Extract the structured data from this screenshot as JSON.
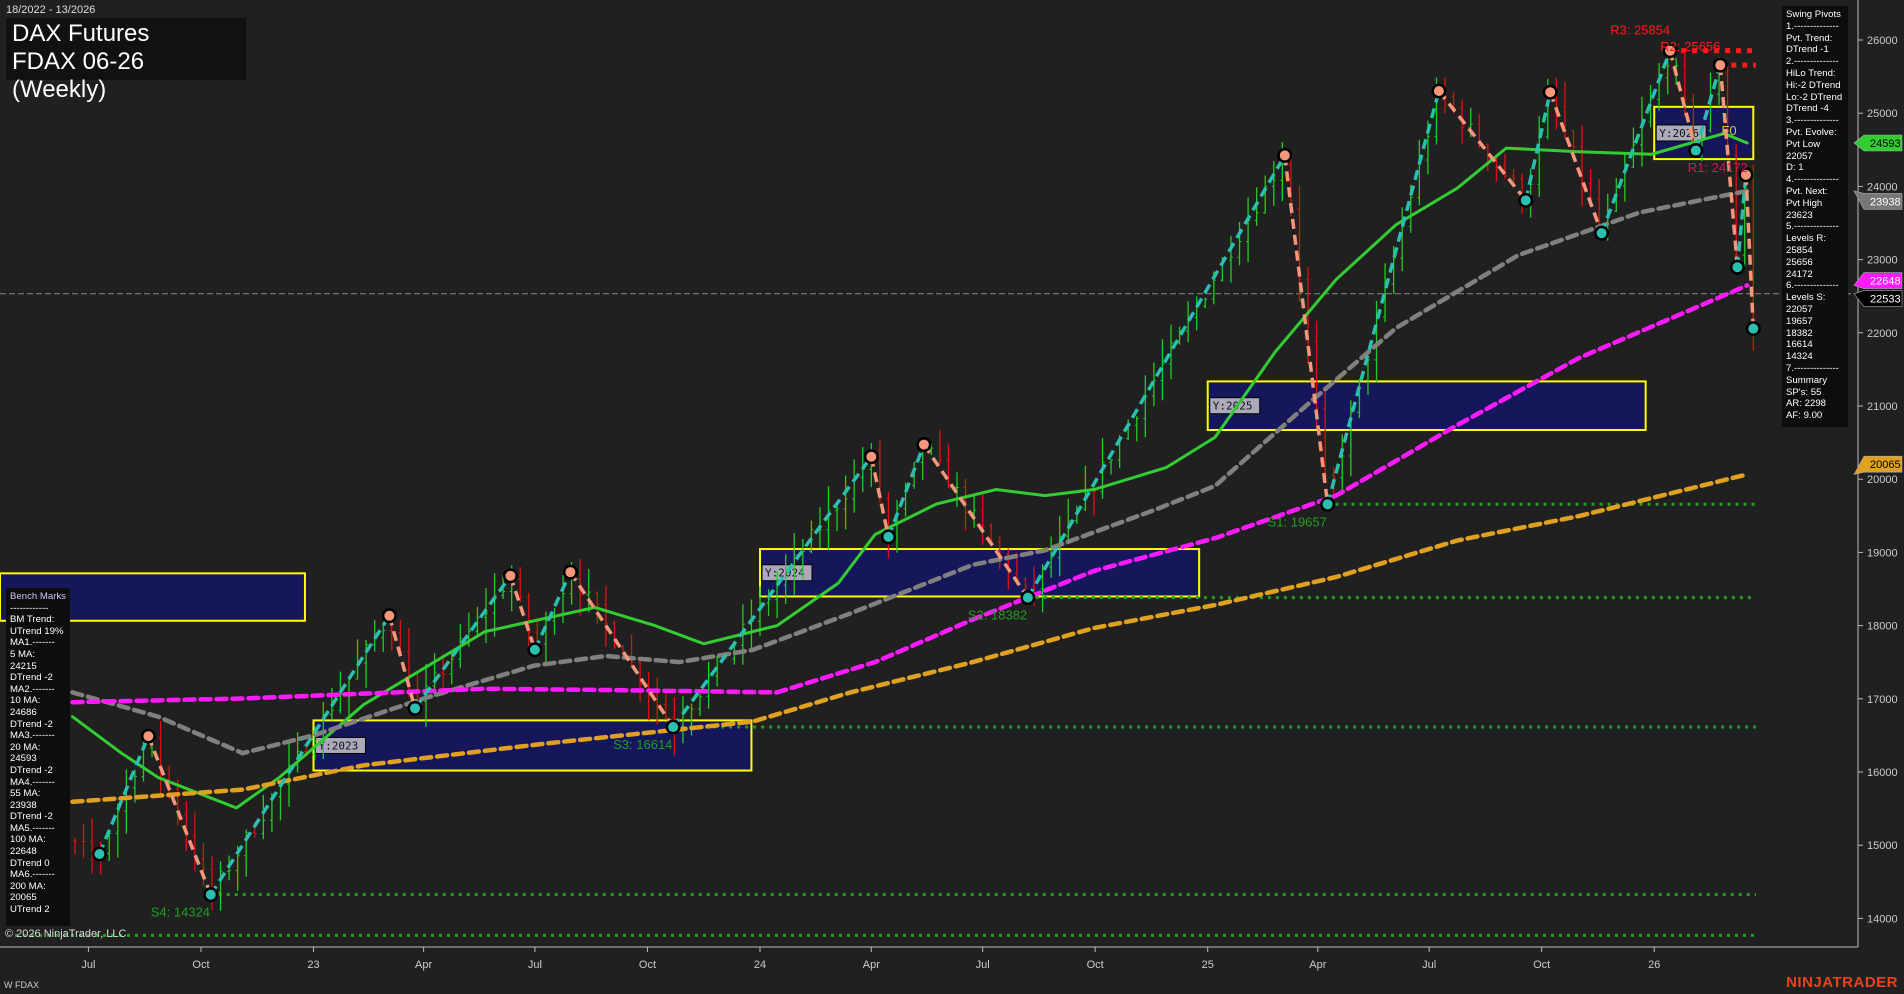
{
  "header": {
    "date_range": "18/2022 - 13/2026",
    "title_line1": "DAX Futures",
    "title_line2": "FDAX 06-26 (Weekly)"
  },
  "swing_pivots_panel": {
    "lines": [
      "Swing Pivots",
      "1.--------------",
      "Pvt. Trend:",
      "DTrend -1",
      "2.--------------",
      "HiLo Trend:",
      "Hi:-2 DTrend",
      "Lo:-2 DTrend",
      "DTrend -4",
      "3.--------------",
      "Pvt. Evolve:",
      "Pvt Low",
      "22057",
      "D: 1",
      "4.--------------",
      "Pvt. Next:",
      "Pvt High",
      "23623",
      "5.--------------",
      "Levels R:",
      "25854",
      "25656",
      "24172",
      "6.--------------",
      "Levels S:",
      "22057",
      "19657",
      "18382",
      "16614",
      "14324",
      "7.--------------",
      "Summary",
      "SP's: 55",
      "AR: 2298",
      "AF: 9.00"
    ]
  },
  "bench_marks_panel": {
    "lines": [
      "Bench Marks",
      "------------",
      "BM Trend:",
      "UTrend 19%",
      "MA1.-------",
      "5 MA:",
      "24215",
      "DTrend -2",
      "MA2.-------",
      "10 MA:",
      "24686",
      "DTrend -2",
      "MA3.-------",
      "20 MA:",
      "24593",
      "DTrend -2",
      "MA4.-------",
      "55 MA:",
      "23938",
      "DTrend -2",
      "MA5.-------",
      "100 MA:",
      "22648",
      "DTrend 0",
      "MA6.-------",
      "200 MA:",
      "20065",
      "UTrend 2"
    ]
  },
  "footer": {
    "copyright": "© 2026 NinjaTrader, LLC",
    "symbol": "W FDAX",
    "brand": "NINJATRADER"
  },
  "chart_data": {
    "type": "candlestick",
    "ylim": [
      13600,
      26400
    ],
    "y_ticks": [
      14000,
      15000,
      16000,
      17000,
      18000,
      19000,
      20000,
      21000,
      22000,
      23000,
      24000,
      25000,
      26000
    ],
    "x_range": [
      "2022-05-02",
      "2026-03-23"
    ],
    "x_ticks": [
      {
        "label": "Jul",
        "date": "2022-07-01"
      },
      {
        "label": "Oct",
        "date": "2022-10-01"
      },
      {
        "label": "23",
        "date": "2023-01-01"
      },
      {
        "label": "Apr",
        "date": "2023-04-01"
      },
      {
        "label": "Jul",
        "date": "2023-07-01"
      },
      {
        "label": "Oct",
        "date": "2023-10-01"
      },
      {
        "label": "24",
        "date": "2024-01-01"
      },
      {
        "label": "Apr",
        "date": "2024-04-01"
      },
      {
        "label": "Jul",
        "date": "2024-07-01"
      },
      {
        "label": "Oct",
        "date": "2024-10-01"
      },
      {
        "label": "25",
        "date": "2025-01-01"
      },
      {
        "label": "Apr",
        "date": "2025-04-01"
      },
      {
        "label": "Jul",
        "date": "2025-07-01"
      },
      {
        "label": "Oct",
        "date": "2025-10-01"
      },
      {
        "label": "26",
        "date": "2026-01-01"
      }
    ],
    "colors": {
      "up": "#22cc22",
      "down": "#dd1111",
      "pivot_high": "#f4977a",
      "pivot_low": "#2bbfb0",
      "swing_up": "#2bbfb0",
      "swing_down": "#f4977a",
      "support": "#1f9f1f",
      "resistance": "#ff1a1a",
      "box_fill": "#16165a",
      "box_border": "#ffff00"
    },
    "pivots": [
      {
        "date": "2022-07-10",
        "price": 14880,
        "type": "low"
      },
      {
        "date": "2022-08-19",
        "price": 16490,
        "type": "high"
      },
      {
        "date": "2022-10-09",
        "price": 14324,
        "type": "low"
      },
      {
        "date": "2023-03-04",
        "price": 18134,
        "type": "high"
      },
      {
        "date": "2023-03-25",
        "price": 16870,
        "type": "low"
      },
      {
        "date": "2023-06-11",
        "price": 18680,
        "type": "high"
      },
      {
        "date": "2023-07-01",
        "price": 17670,
        "type": "low"
      },
      {
        "date": "2023-07-30",
        "price": 18730,
        "type": "high"
      },
      {
        "date": "2023-10-22",
        "price": 16614,
        "type": "low"
      },
      {
        "date": "2024-04-01",
        "price": 20307,
        "type": "high"
      },
      {
        "date": "2024-04-15",
        "price": 19212,
        "type": "low"
      },
      {
        "date": "2024-05-14",
        "price": 20473,
        "type": "high"
      },
      {
        "date": "2024-08-07",
        "price": 18382,
        "type": "low"
      },
      {
        "date": "2025-03-05",
        "price": 24423,
        "type": "high"
      },
      {
        "date": "2025-04-09",
        "price": 19657,
        "type": "low"
      },
      {
        "date": "2025-07-09",
        "price": 25303,
        "type": "high"
      },
      {
        "date": "2025-09-18",
        "price": 23809,
        "type": "low"
      },
      {
        "date": "2025-10-08",
        "price": 25286,
        "type": "high"
      },
      {
        "date": "2025-11-19",
        "price": 23361,
        "type": "low"
      },
      {
        "date": "2026-01-14",
        "price": 25854,
        "type": "high"
      },
      {
        "date": "2026-02-04",
        "price": 24490,
        "type": "low"
      },
      {
        "date": "2026-02-24",
        "price": 25656,
        "type": "high"
      },
      {
        "date": "2026-03-10",
        "price": 22896,
        "type": "low"
      },
      {
        "date": "2026-03-17",
        "price": 24158,
        "type": "high"
      },
      {
        "date": "2026-03-23",
        "price": 22057,
        "type": "low"
      }
    ],
    "moving_averages": [
      {
        "name": "20 MA",
        "color": "#33cc33",
        "style": "solid",
        "points": [
          [
            "2022-06-18",
            16755
          ],
          [
            "2022-07-28",
            16257
          ],
          [
            "2022-08-27",
            15925
          ],
          [
            "2022-10-30",
            15510
          ],
          [
            "2022-12-04",
            15925
          ],
          [
            "2023-02-11",
            16921
          ],
          [
            "2023-05-21",
            17917
          ],
          [
            "2023-08-19",
            18249
          ],
          [
            "2023-10-07",
            18000
          ],
          [
            "2023-11-16",
            17751
          ],
          [
            "2024-01-15",
            18000
          ],
          [
            "2024-03-05",
            18581
          ],
          [
            "2024-04-04",
            19245
          ],
          [
            "2024-05-24",
            19660
          ],
          [
            "2024-07-12",
            19859
          ],
          [
            "2024-08-21",
            19776
          ],
          [
            "2024-09-30",
            19859
          ],
          [
            "2024-11-28",
            20158
          ],
          [
            "2025-01-07",
            20573
          ],
          [
            "2025-02-25",
            21735
          ],
          [
            "2025-04-16",
            22730
          ],
          [
            "2025-06-04",
            23477
          ],
          [
            "2025-07-24",
            23975
          ],
          [
            "2025-09-02",
            24523
          ],
          [
            "2025-10-31",
            24473
          ],
          [
            "2025-12-30",
            24440
          ],
          [
            "2026-02-27",
            24722
          ],
          [
            "2026-03-18",
            24593
          ]
        ]
      },
      {
        "name": "55 MA",
        "color": "#808080",
        "style": "dashed",
        "points": [
          [
            "2022-06-18",
            17087
          ],
          [
            "2022-08-27",
            16755
          ],
          [
            "2022-11-04",
            16257
          ],
          [
            "2023-01-02",
            16506
          ],
          [
            "2023-04-01",
            17004
          ],
          [
            "2023-06-30",
            17452
          ],
          [
            "2023-08-28",
            17585
          ],
          [
            "2023-10-27",
            17502
          ],
          [
            "2023-12-26",
            17668
          ],
          [
            "2024-03-15",
            18166
          ],
          [
            "2024-06-23",
            18830
          ],
          [
            "2024-08-21",
            19029
          ],
          [
            "2024-11-18",
            19577
          ],
          [
            "2025-01-07",
            19909
          ],
          [
            "2025-03-27",
            21071
          ],
          [
            "2025-06-04",
            22066
          ],
          [
            "2025-09-12",
            23062
          ],
          [
            "2025-12-20",
            23643
          ],
          [
            "2026-03-18",
            23938
          ]
        ]
      },
      {
        "name": "100 MA",
        "color": "#ff1aff",
        "style": "dashed",
        "points": [
          [
            "2022-06-18",
            16954
          ],
          [
            "2022-11-04",
            17004
          ],
          [
            "2023-05-21",
            17137
          ],
          [
            "2023-08-28",
            17120
          ],
          [
            "2024-01-15",
            17087
          ],
          [
            "2024-04-04",
            17502
          ],
          [
            "2024-06-23",
            18083
          ],
          [
            "2024-09-30",
            18747
          ],
          [
            "2025-01-07",
            19195
          ],
          [
            "2025-04-16",
            19776
          ],
          [
            "2025-07-24",
            20739
          ],
          [
            "2025-10-31",
            21651
          ],
          [
            "2026-03-18",
            22648
          ]
        ]
      },
      {
        "name": "200 MA",
        "color": "#e0a020",
        "style": "dashed",
        "points": [
          [
            "2022-06-18",
            15593
          ],
          [
            "2022-11-04",
            15759
          ],
          [
            "2023-02-11",
            16091
          ],
          [
            "2023-07-10",
            16390
          ],
          [
            "2023-12-26",
            16689
          ],
          [
            "2024-03-15",
            17087
          ],
          [
            "2024-06-23",
            17502
          ],
          [
            "2024-09-30",
            17967
          ],
          [
            "2025-01-07",
            18282
          ],
          [
            "2025-04-16",
            18664
          ],
          [
            "2025-07-24",
            19162
          ],
          [
            "2025-10-31",
            19494
          ],
          [
            "2026-03-18",
            20065
          ]
        ]
      }
    ],
    "levels": [
      {
        "label": "S1: 19657",
        "price": 19657,
        "from": "2025-04-09",
        "kind": "support"
      },
      {
        "label": "S2: 18382",
        "price": 18382,
        "from": "2024-08-07",
        "kind": "support"
      },
      {
        "label": "S3: 16614",
        "price": 16614,
        "from": "2023-10-22",
        "kind": "support"
      },
      {
        "label": "S4: 14324",
        "price": 14324,
        "from": "2022-10-09",
        "kind": "support"
      },
      {
        "label": "",
        "price": 13768,
        "from": "2022-05-02",
        "kind": "support"
      },
      {
        "label": "R3: 25854",
        "price": 25854,
        "from": "2026-01-14",
        "kind": "resistance"
      },
      {
        "label": "R2: 25656",
        "price": 25656,
        "from": "2026-02-24",
        "kind": "resistance"
      },
      {
        "label": "R1: 24172",
        "price": 24172,
        "from": "2026-02-04",
        "kind": "resistance_label"
      }
    ],
    "yearly_boxes": [
      {
        "label": "",
        "from": "2022-04-01",
        "to": "2022-12-25",
        "high": 18714,
        "low": 18066
      },
      {
        "label": "Y:2023",
        "from": "2023-01-01",
        "to": "2023-12-25",
        "high": 16705,
        "low": 16020
      },
      {
        "label": "Y:2024",
        "from": "2024-01-01",
        "to": "2024-12-25",
        "high": 19046,
        "low": 18398
      },
      {
        "label": "Y:2025",
        "from": "2025-01-01",
        "to": "2025-12-25",
        "high": 21336,
        "low": 20672
      },
      {
        "label": "Y:2026",
        "from": "2026-01-01",
        "to": "2026-03-23",
        "high": 25087,
        "low": 24373
      }
    ],
    "annotations": [
      {
        "label": "F0",
        "price": 24700,
        "date": "2026-02-25",
        "color": "#d8c840"
      }
    ],
    "current_price": 22533,
    "price_badges": [
      {
        "value": "24593",
        "color": "#33cc33",
        "text_color": "#000"
      },
      {
        "value": "23938",
        "color": "#777777",
        "text_color": "#fff"
      },
      {
        "value": "22648",
        "color": "#ff1aff",
        "text_color": "#fff"
      },
      {
        "value": "22533",
        "color": "#000000",
        "text_color": "#fff"
      },
      {
        "value": "20065",
        "color": "#e0a020",
        "text_color": "#000"
      }
    ]
  }
}
